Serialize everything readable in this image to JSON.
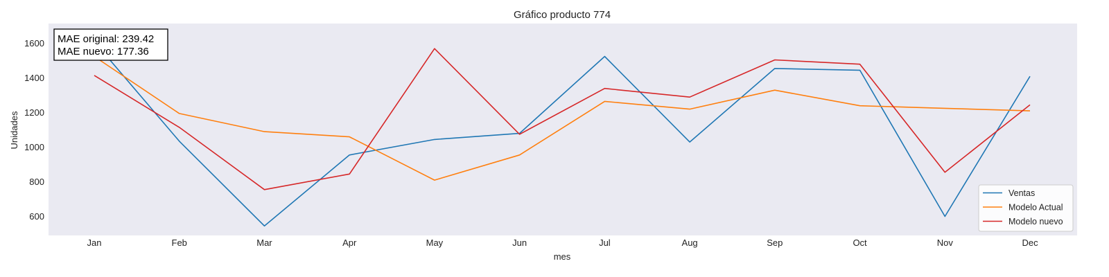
{
  "colors": {
    "plot_background": "#EAEAF2",
    "page_background": "#FFFFFF",
    "ventas": "#1F77B4",
    "modelo_actual": "#FF7F0E",
    "modelo_nuevo": "#D62728"
  },
  "chart_data": {
    "type": "line",
    "title": "Gráfico producto 774",
    "xlabel": "mes",
    "ylabel": "Unidades",
    "categories": [
      "Jan",
      "Feb",
      "Mar",
      "Apr",
      "May",
      "Jun",
      "Jul",
      "Aug",
      "Sep",
      "Oct",
      "Nov",
      "Dec"
    ],
    "ylim": [
      490,
      1715
    ],
    "yticks": [
      600,
      800,
      1000,
      1200,
      1400,
      1600
    ],
    "grid": false,
    "legend_position": "bottom-right",
    "annotation": {
      "line1": "MAE original: 239.42",
      "line2": "MAE nuevo: 177.36",
      "position": "top-left"
    },
    "series": [
      {
        "name": "Ventas",
        "color_key": "ventas",
        "values": [
          1610,
          1035,
          545,
          955,
          1045,
          1080,
          1525,
          1030,
          1455,
          1445,
          600,
          1410
        ]
      },
      {
        "name": "Modelo Actual",
        "color_key": "modelo_actual",
        "values": [
          1525,
          1195,
          1090,
          1060,
          810,
          955,
          1265,
          1220,
          1330,
          1240,
          1225,
          1210
        ]
      },
      {
        "name": "Modelo nuevo",
        "color_key": "modelo_nuevo",
        "values": [
          1415,
          1115,
          755,
          845,
          1570,
          1075,
          1340,
          1290,
          1505,
          1480,
          855,
          1245
        ]
      }
    ]
  }
}
